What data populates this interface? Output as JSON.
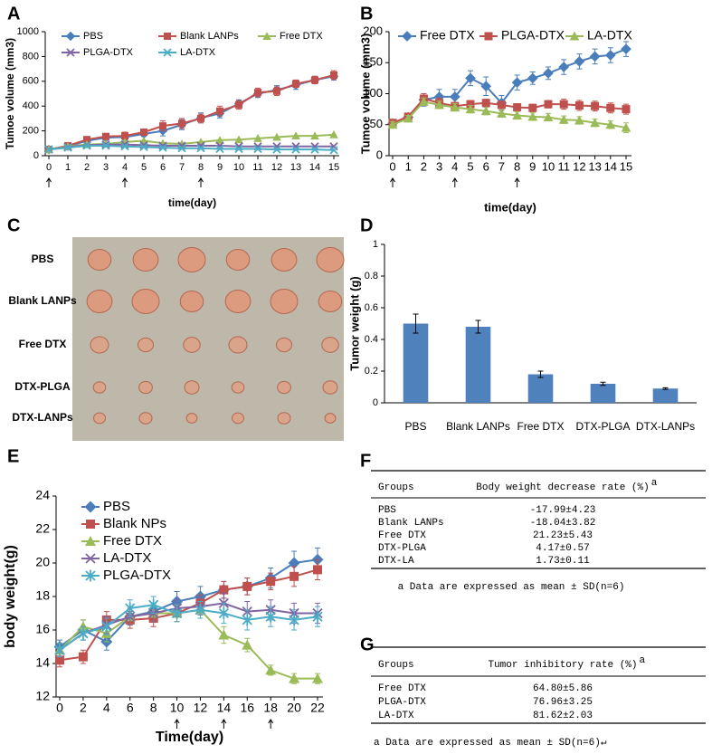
{
  "chart_data": [
    {
      "type": "line",
      "label": "A",
      "y_label": "Tumoe volume (mm3)",
      "x_label": "time(day)",
      "x": [
        0,
        1,
        2,
        3,
        4,
        5,
        6,
        7,
        8,
        9,
        10,
        11,
        12,
        13,
        14,
        15
      ],
      "xlim": [
        0,
        15
      ],
      "xticks": [
        0,
        1,
        2,
        3,
        4,
        5,
        6,
        7,
        8,
        9,
        10,
        11,
        12,
        13,
        14,
        15
      ],
      "ylim": [
        0,
        1000
      ],
      "yticks": [
        0,
        200,
        400,
        600,
        800,
        1000
      ],
      "arrow_days": [
        0,
        4,
        8
      ],
      "series": [
        {
          "name": "PBS",
          "color": "#4a7ebb",
          "marker": "diamond",
          "values": [
            50,
            75,
            120,
            145,
            150,
            175,
            200,
            250,
            305,
            340,
            420,
            500,
            530,
            570,
            610,
            640
          ],
          "errors": [
            5,
            8,
            15,
            20,
            25,
            20,
            40,
            40,
            40,
            35,
            30,
            30,
            35,
            35,
            30,
            30
          ]
        },
        {
          "name": "Blank LANPs",
          "color": "#c0504d",
          "marker": "square",
          "values": [
            50,
            80,
            130,
            155,
            160,
            190,
            240,
            260,
            300,
            360,
            410,
            510,
            520,
            580,
            610,
            650
          ],
          "errors": [
            5,
            8,
            15,
            25,
            30,
            25,
            40,
            40,
            35,
            40,
            35,
            35,
            35,
            30,
            30,
            35
          ]
        },
        {
          "name": "Free DTX",
          "color": "#9bbb59",
          "marker": "triangle",
          "values": [
            50,
            75,
            90,
            95,
            110,
            120,
            100,
            95,
            110,
            125,
            130,
            140,
            150,
            160,
            160,
            170
          ]
        },
        {
          "name": "PLGA-DTX",
          "color": "#8064a2",
          "marker": "x",
          "values": [
            50,
            70,
            85,
            90,
            90,
            85,
            80,
            80,
            80,
            80,
            75,
            75,
            75,
            75,
            75,
            75
          ]
        },
        {
          "name": "LA-DTX",
          "color": "#4bacc6",
          "marker": "x",
          "values": [
            50,
            65,
            80,
            80,
            75,
            70,
            65,
            60,
            60,
            55,
            55,
            55,
            50,
            50,
            50,
            45
          ]
        }
      ]
    },
    {
      "type": "line",
      "label": "B",
      "y_label": "Tumoe volume (mm3)",
      "x_label": "time(day)",
      "x": [
        0,
        1,
        2,
        3,
        4,
        5,
        6,
        7,
        8,
        9,
        10,
        11,
        12,
        13,
        14,
        15
      ],
      "xlim": [
        0,
        15
      ],
      "xticks": [
        0,
        1,
        2,
        3,
        4,
        5,
        6,
        7,
        8,
        9,
        10,
        11,
        12,
        13,
        14,
        15
      ],
      "ylim": [
        0,
        200
      ],
      "yticks": [
        0,
        50,
        100,
        150,
        200
      ],
      "arrow_days": [
        0,
        4,
        8
      ],
      "series": [
        {
          "name": "Free DTX",
          "color": "#4a7ebb",
          "marker": "diamond",
          "values": [
            52,
            62,
            90,
            95,
            95,
            125,
            112,
            85,
            118,
            125,
            133,
            143,
            152,
            160,
            162,
            172
          ],
          "errors": [
            5,
            6,
            10,
            12,
            12,
            12,
            15,
            12,
            12,
            10,
            10,
            12,
            12,
            12,
            12,
            12
          ]
        },
        {
          "name": "PLGA-DTX",
          "color": "#c0504d",
          "marker": "square",
          "values": [
            53,
            63,
            92,
            85,
            80,
            83,
            85,
            82,
            78,
            77,
            83,
            83,
            81,
            80,
            77,
            75
          ],
          "errors": [
            5,
            5,
            8,
            8,
            6,
            6,
            6,
            6,
            6,
            6,
            6,
            8,
            8,
            8,
            8,
            8
          ]
        },
        {
          "name": "LA-DTX",
          "color": "#9bbb59",
          "marker": "triangle",
          "values": [
            50,
            60,
            87,
            82,
            78,
            75,
            72,
            68,
            65,
            63,
            62,
            58,
            57,
            53,
            50,
            45
          ],
          "errors": [
            5,
            5,
            6,
            6,
            6,
            6,
            6,
            6,
            6,
            6,
            6,
            6,
            6,
            6,
            6,
            8
          ]
        }
      ]
    },
    {
      "type": "bar",
      "label": "D",
      "y_label": "Tumor weight (g)",
      "color": "#4f81bd",
      "categories": [
        "PBS",
        "Blank LANPs",
        "Free DTX",
        "DTX-PLGA",
        "DTX-LANPs"
      ],
      "values": [
        0.5,
        0.48,
        0.18,
        0.12,
        0.09
      ],
      "errors": [
        0.06,
        0.04,
        0.02,
        0.01,
        0.005
      ],
      "ylim": [
        0,
        1
      ],
      "yticks": [
        0,
        0.2,
        0.4,
        0.6,
        0.8,
        1
      ]
    },
    {
      "type": "line",
      "label": "E",
      "y_label": "body weight(g)",
      "x_label": "Time(day)",
      "x": [
        0,
        2,
        4,
        6,
        8,
        10,
        12,
        14,
        16,
        18,
        20,
        22
      ],
      "xlim": [
        0,
        22
      ],
      "xticks": [
        0,
        2,
        4,
        6,
        8,
        10,
        12,
        14,
        16,
        18,
        20,
        22
      ],
      "ylim": [
        12,
        24
      ],
      "yticks": [
        12,
        14,
        16,
        18,
        20,
        22,
        24
      ],
      "arrow_days": [
        10,
        14,
        18
      ],
      "series": [
        {
          "name": "PBS",
          "color": "#4a7ebb",
          "marker": "diamond",
          "values": [
            15.0,
            16.0,
            15.3,
            16.8,
            17.1,
            17.7,
            18.0,
            18.4,
            18.6,
            19.1,
            20.0,
            20.2
          ],
          "errors": [
            0.4,
            0.6,
            0.5,
            0.5,
            0.5,
            0.6,
            0.6,
            0.5,
            0.5,
            0.6,
            0.7,
            0.7
          ]
        },
        {
          "name": "Blank NPs",
          "color": "#c0504d",
          "marker": "square",
          "values": [
            14.2,
            14.4,
            16.6,
            16.6,
            16.7,
            17.0,
            17.6,
            18.4,
            18.6,
            18.9,
            19.2,
            19.6
          ],
          "errors": [
            0.4,
            0.4,
            0.5,
            0.5,
            0.5,
            0.5,
            0.5,
            0.5,
            0.5,
            0.5,
            0.6,
            0.6
          ]
        },
        {
          "name": "Free DTX",
          "color": "#9bbb59",
          "marker": "triangle",
          "values": [
            14.8,
            16.2,
            15.8,
            16.8,
            17.0,
            17.0,
            17.2,
            15.7,
            15.1,
            13.6,
            13.1,
            13.1
          ],
          "errors": [
            0.4,
            0.4,
            0.5,
            0.5,
            0.5,
            0.5,
            0.5,
            0.5,
            0.4,
            0.3,
            0.3,
            0.3
          ]
        },
        {
          "name": "LA-DTX",
          "color": "#8064a2",
          "marker": "x",
          "values": [
            14.8,
            15.8,
            16.3,
            16.8,
            17.0,
            17.3,
            17.4,
            17.6,
            17.1,
            17.2,
            17.0,
            17.0
          ],
          "errors": [
            0.4,
            0.4,
            0.5,
            0.5,
            0.5,
            0.5,
            0.5,
            0.6,
            0.6,
            0.6,
            0.6,
            0.6
          ]
        },
        {
          "name": "PLGA-DTX",
          "color": "#4bacc6",
          "marker": "star",
          "values": [
            14.8,
            15.8,
            16.2,
            17.3,
            17.5,
            17.0,
            17.2,
            17.0,
            16.6,
            16.8,
            16.6,
            16.8
          ],
          "errors": [
            0.4,
            0.4,
            0.5,
            0.5,
            0.5,
            0.5,
            0.5,
            0.6,
            0.6,
            0.6,
            0.6,
            0.6
          ]
        }
      ]
    }
  ],
  "photo": {
    "label": "C",
    "rows": [
      "PBS",
      "Blank LANPs",
      "Free DTX",
      "DTX-PLGA",
      "DTX-LANPs"
    ]
  },
  "tables": [
    {
      "label": "F",
      "columns": [
        "Groups",
        "Body weight decrease rate (%)"
      ],
      "superscript": "a",
      "rows": [
        [
          "PBS",
          "-17.99±4.23"
        ],
        [
          "Blank LANPs",
          "-18.04±3.82"
        ],
        [
          "Free DTX",
          "21.23±5.43"
        ],
        [
          "DTX-PLGA",
          "4.17±0.57"
        ],
        [
          "DTX-LA",
          "1.73±0.11"
        ]
      ],
      "note": "a Data are expressed as mean ± SD(n=6)"
    },
    {
      "label": "G",
      "columns": [
        "Groups",
        "Tumor inhibitory rate (%)"
      ],
      "superscript": "a",
      "rows": [
        [
          "Free DTX",
          "64.80±5.86"
        ],
        [
          "PLGA-DTX",
          "76.96±3.25"
        ],
        [
          "LA-DTX",
          "81.62±2.03"
        ]
      ],
      "note": "a Data are expressed as mean ± SD(n=6)↵"
    }
  ]
}
